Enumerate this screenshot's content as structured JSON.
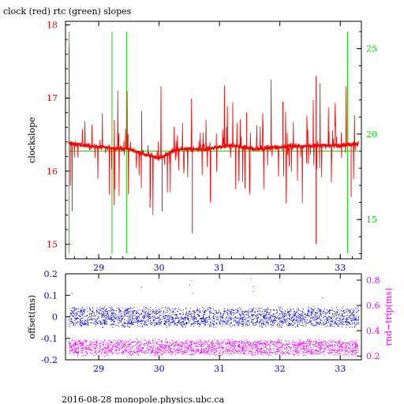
{
  "title": "clock (red) rtc (green) slopes",
  "footer": "2016-08-28  monopole.physics.ubc.ca",
  "colors": {
    "red": "#ff0000",
    "green": "#00dd00",
    "blue": "#0000ff",
    "magenta": "#ff00ff",
    "axis": "#000000"
  },
  "chart_data": [
    {
      "type": "line",
      "title": "clock (red) rtc (green) slopes",
      "xlabel": "",
      "xlim": [
        28.45,
        33.35
      ],
      "xticks": [
        29,
        30,
        31,
        32,
        33
      ],
      "ylabel": "clockslope",
      "ylim": [
        14.8,
        18.05
      ],
      "yticks": [
        15,
        16,
        17,
        18
      ],
      "y2label": "",
      "y2lim": [
        12.7,
        26.6
      ],
      "y2ticks": [
        15,
        20,
        25
      ],
      "series": [
        {
          "color": "red",
          "axis": "left",
          "baseline": [
            [
              28.5,
              16.38
            ],
            [
              29.0,
              16.33
            ],
            [
              29.5,
              16.3
            ],
            [
              29.8,
              16.22
            ],
            [
              30.0,
              16.18
            ],
            [
              30.3,
              16.3
            ],
            [
              30.8,
              16.3
            ],
            [
              31.2,
              16.35
            ],
            [
              31.6,
              16.3
            ],
            [
              32.0,
              16.33
            ],
            [
              32.5,
              16.35
            ],
            [
              33.0,
              16.35
            ],
            [
              33.3,
              16.38
            ]
          ],
          "spikes": [
            [
              28.51,
              17.7
            ],
            [
              28.53,
              15.8
            ],
            [
              28.56,
              15.45
            ],
            [
              29.27,
              15.75
            ],
            [
              29.85,
              15.5
            ],
            [
              30.05,
              15.45
            ],
            [
              30.55,
              15.15
            ],
            [
              30.85,
              15.6
            ],
            [
              31.45,
              16.8
            ],
            [
              32.05,
              16.95
            ],
            [
              32.6,
              17.3
            ],
            [
              32.6,
              15.0
            ],
            [
              33.18,
              15.65
            ]
          ]
        },
        {
          "color": "green",
          "axis": "right",
          "baseline": [
            [
              28.5,
              19.0
            ],
            [
              33.3,
              19.0
            ]
          ],
          "spikes": [
            [
              28.51,
              26.0
            ],
            [
              28.51,
              13.0
            ],
            [
              29.22,
              26.0
            ],
            [
              29.22,
              13.0
            ],
            [
              29.46,
              26.0
            ],
            [
              29.46,
              13.0
            ],
            [
              33.12,
              26.0
            ],
            [
              33.12,
              13.0
            ]
          ]
        }
      ]
    },
    {
      "type": "scatter",
      "xlabel": "",
      "xlim": [
        28.45,
        33.35
      ],
      "xticks": [
        29,
        30,
        31,
        32,
        33
      ],
      "ylabel": "offset(ms)",
      "ylim": [
        -0.2,
        0.2
      ],
      "yticks": [
        -0.2,
        -0.1,
        0,
        0.1,
        0.2
      ],
      "y2label": "rnd−trip(ms)",
      "y2lim": [
        0.17,
        0.85
      ],
      "y2ticks": [
        0.2,
        0.4,
        0.6,
        0.8
      ],
      "series": [
        {
          "color": "blue",
          "axis": "left",
          "x_range": [
            28.5,
            33.3
          ],
          "center": 0.0,
          "spread": 0.05,
          "outliers": [
            [
              28.55,
              0.11
            ],
            [
              29.7,
              0.14
            ],
            [
              30.5,
              0.15
            ],
            [
              31.55,
              0.12
            ],
            [
              32.7,
              0.09
            ]
          ]
        },
        {
          "color": "magenta",
          "axis": "right",
          "x_range": [
            28.5,
            33.3
          ],
          "center": 0.27,
          "spread": 0.07,
          "outliers": [
            [
              30.52,
              0.8
            ],
            [
              30.55,
              0.7
            ],
            [
              31.52,
              0.82
            ],
            [
              31.55,
              0.75
            ],
            [
              32.55,
              0.6
            ],
            [
              28.55,
              0.55
            ],
            [
              29.55,
              0.55
            ]
          ]
        }
      ]
    }
  ]
}
